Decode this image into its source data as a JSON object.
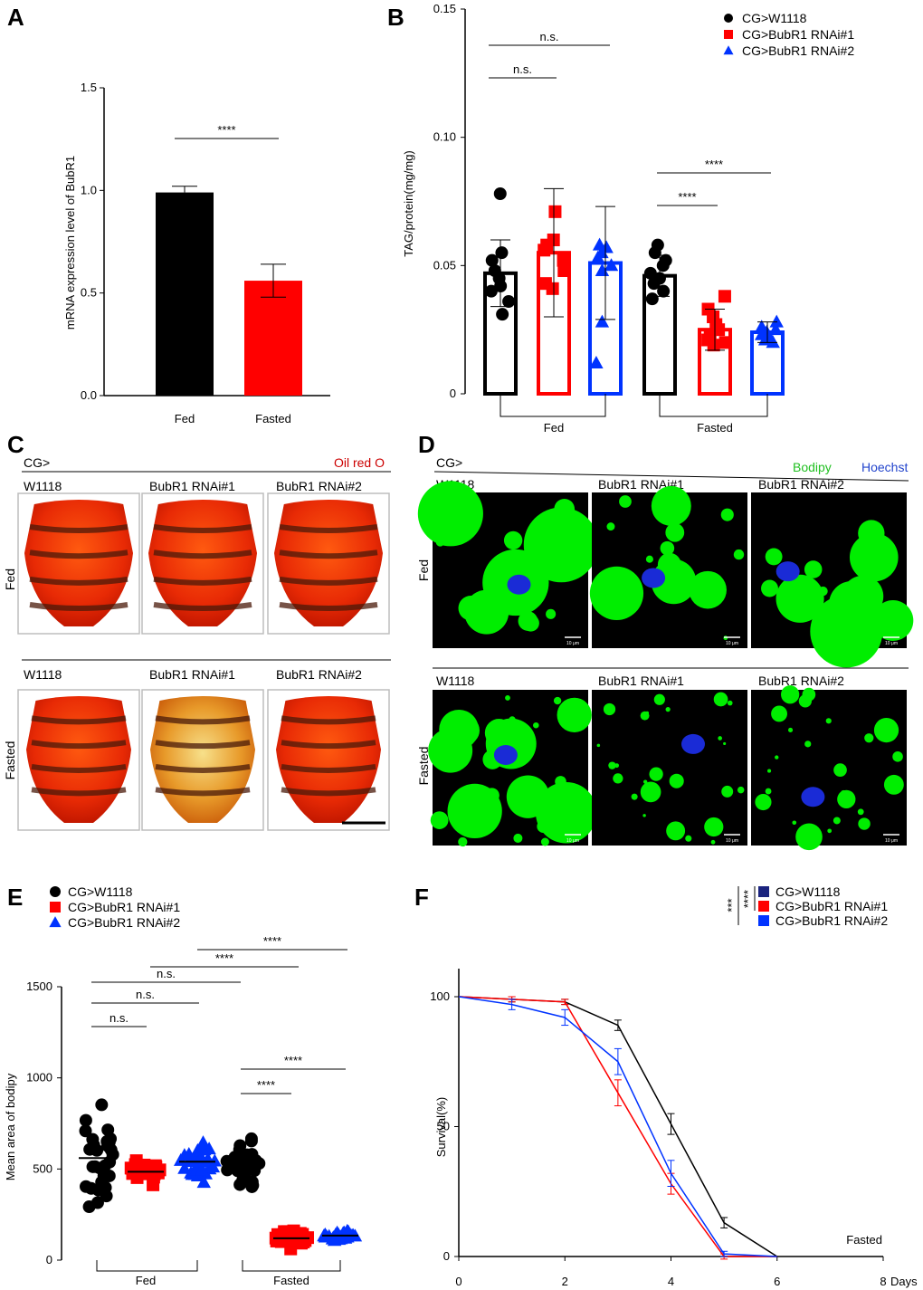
{
  "figure": {
    "panel_labels": [
      "A",
      "B",
      "C",
      "D",
      "E",
      "F"
    ]
  },
  "chart_data": [
    {
      "panel": "A",
      "type": "bar",
      "ylabel": "mRNA expression level of BubR1",
      "xlabel": "",
      "categories": [
        "Fed",
        "Fasted"
      ],
      "values": [
        0.99,
        0.56
      ],
      "errors": [
        0.03,
        0.08
      ],
      "colors": [
        "#000000",
        "#ff0000"
      ],
      "ylim": [
        0,
        1.5
      ],
      "yticks": [
        "0.0",
        "0.5",
        "1.0",
        "1.5"
      ],
      "annotations": [
        {
          "text": "****",
          "between": [
            0,
            1
          ]
        }
      ]
    },
    {
      "panel": "B",
      "type": "bar",
      "ylabel": "TAG/protein(mg/mg)",
      "ylim": [
        0,
        0.15
      ],
      "yticks": [
        "0",
        "0.05",
        "0.10",
        "0.15"
      ],
      "groups": [
        "Fed",
        "Fasted"
      ],
      "legend": [
        "CG>W1118",
        "CG>BubR1 RNAi#1",
        "CG>BubR1 RNAi#2"
      ],
      "legend_position": "top-right",
      "series": [
        {
          "name": "CG>W1118",
          "color": "#000000",
          "marker": "circle",
          "values": [
            0.047,
            0.046
          ],
          "errors": [
            0.013,
            0.008
          ],
          "points": [
            [
              0.078,
              0.055,
              0.052,
              0.048,
              0.045,
              0.042,
              0.04,
              0.036,
              0.031
            ],
            [
              0.058,
              0.055,
              0.052,
              0.05,
              0.047,
              0.045,
              0.043,
              0.04,
              0.037
            ]
          ]
        },
        {
          "name": "CG>BubR1 RNAi#1",
          "color": "#ff0000",
          "marker": "square",
          "values": [
            0.055,
            0.025
          ],
          "errors": [
            0.025,
            0.008
          ],
          "points": [
            [
              0.071,
              0.06,
              0.058,
              0.056,
              0.052,
              0.048,
              0.043,
              0.041
            ],
            [
              0.038,
              0.033,
              0.03,
              0.027,
              0.025,
              0.023,
              0.021,
              0.02,
              0.019
            ]
          ]
        },
        {
          "name": "CG>BubR1 RNAi#2",
          "color": "#0033ff",
          "marker": "triangle",
          "values": [
            0.051,
            0.024
          ],
          "errors": [
            0.022,
            0.004
          ],
          "points": [
            [
              0.058,
              0.057,
              0.055,
              0.053,
              0.05,
              0.048,
              0.028,
              0.012
            ],
            [
              0.028,
              0.026,
              0.025,
              0.024,
              0.023,
              0.022,
              0.021,
              0.02
            ]
          ]
        }
      ],
      "annotations": [
        {
          "text": "n.s.",
          "pair": [
            "Fed CG>W1118",
            "Fed CG>BubR1 RNAi#2"
          ]
        },
        {
          "text": "n.s.",
          "pair": [
            "Fed CG>W1118",
            "Fed CG>BubR1 RNAi#1"
          ]
        },
        {
          "text": "****",
          "pair": [
            "Fasted CG>W1118",
            "Fasted CG>BubR1 RNAi#2"
          ]
        },
        {
          "text": "****",
          "pair": [
            "Fasted CG>W1118",
            "Fasted CG>BubR1 RNAi#1"
          ]
        }
      ]
    },
    {
      "panel": "E",
      "type": "scatter",
      "ylabel": "Mean area of bodipy",
      "ylim": [
        0,
        1500
      ],
      "yticks": [
        "0",
        "500",
        "1000",
        "1500"
      ],
      "groups": [
        "Fed",
        "Fasted"
      ],
      "legend": [
        "CG>W1118",
        "CG>BubR1 RNAi#1",
        "CG>BubR1 RNAi#2"
      ],
      "legend_position": "top-left",
      "series": [
        {
          "name": "CG>W1118",
          "color": "#000000",
          "marker": "circle",
          "means": [
            560,
            530
          ],
          "sd": [
            260,
            140
          ]
        },
        {
          "name": "CG>BubR1 RNAi#1",
          "color": "#ff0000",
          "marker": "square",
          "means": [
            485,
            120
          ],
          "sd": [
            60,
            45
          ]
        },
        {
          "name": "CG>BubR1 RNAi#2",
          "color": "#0033ff",
          "marker": "triangle",
          "means": [
            540,
            135
          ],
          "sd": [
            120,
            35
          ]
        }
      ],
      "annotations": [
        {
          "text": "n.s.",
          "pair": [
            "Fed CG>W1118",
            "Fed CG>BubR1 RNAi#1"
          ]
        },
        {
          "text": "n.s.",
          "pair": [
            "Fed CG>W1118",
            "Fed CG>BubR1 RNAi#2"
          ]
        },
        {
          "text": "n.s.",
          "pair": [
            "Fed CG>W1118",
            "Fasted CG>W1118"
          ]
        },
        {
          "text": "****",
          "pair": [
            "Fed CG>BubR1 RNAi#1",
            "Fasted CG>BubR1 RNAi#1"
          ]
        },
        {
          "text": "****",
          "pair": [
            "Fed CG>BubR1 RNAi#2",
            "Fasted CG>BubR1 RNAi#2"
          ]
        },
        {
          "text": "****",
          "pair": [
            "Fasted CG>W1118",
            "Fasted CG>BubR1 RNAi#1"
          ]
        },
        {
          "text": "****",
          "pair": [
            "Fasted CG>W1118",
            "Fasted CG>BubR1 RNAi#2"
          ]
        }
      ]
    },
    {
      "panel": "F",
      "type": "line",
      "ylabel": "Survival(%)",
      "xlabel": "Days",
      "xlim": [
        0,
        8
      ],
      "ylim": [
        0,
        100
      ],
      "xticks": [
        "0",
        "2",
        "4",
        "6",
        "8"
      ],
      "yticks": [
        "0",
        "50",
        "100"
      ],
      "legend": [
        "CG>W1118",
        "CG>BubR1 RNAi#1",
        "CG>BubR1 RNAi#2"
      ],
      "legend_position": "top-right",
      "annotation": "Fasted",
      "sig_labels": [
        "***",
        "****"
      ],
      "series": [
        {
          "name": "CG>W1118",
          "color": "#000000",
          "x": [
            0,
            1,
            2,
            3,
            4,
            5,
            6
          ],
          "y": [
            100,
            99,
            98,
            89,
            51,
            13,
            0
          ],
          "errors": [
            0,
            1,
            1,
            2,
            4,
            2,
            0
          ]
        },
        {
          "name": "CG>BubR1 RNAi#1",
          "color": "#ff0000",
          "x": [
            0,
            1,
            2,
            3,
            4,
            5,
            6
          ],
          "y": [
            100,
            99,
            98,
            63,
            28,
            0,
            0
          ],
          "errors": [
            0,
            1,
            1,
            5,
            4,
            1,
            0
          ]
        },
        {
          "name": "CG>BubR1 RNAi#2",
          "color": "#0033ff",
          "x": [
            0,
            1,
            2,
            3,
            4,
            5,
            6
          ],
          "y": [
            100,
            97,
            92,
            75,
            32,
            1,
            0
          ],
          "errors": [
            0,
            2,
            3,
            5,
            5,
            1,
            0
          ]
        }
      ]
    }
  ],
  "panel_c": {
    "prefix": "CG>",
    "stain": "Oil red O",
    "columns": [
      "W1118",
      "BubR1 RNAi#1",
      "BubR1 RNAi#2"
    ],
    "rows": [
      "Fed",
      "Fasted"
    ]
  },
  "panel_d": {
    "prefix": "CG>",
    "stain1": "Bodipy",
    "stain2": "Hoechst",
    "columns": [
      "W1118",
      "BubR1 RNAi#1",
      "BubR1 RNAi#2"
    ],
    "rows": [
      "Fed",
      "Fasted"
    ],
    "scale": "10 μm"
  },
  "colors": {
    "black": "#000000",
    "red": "#ff0000",
    "blue": "#0033ff",
    "green": "#00ee00",
    "navy": "#1a237e"
  }
}
